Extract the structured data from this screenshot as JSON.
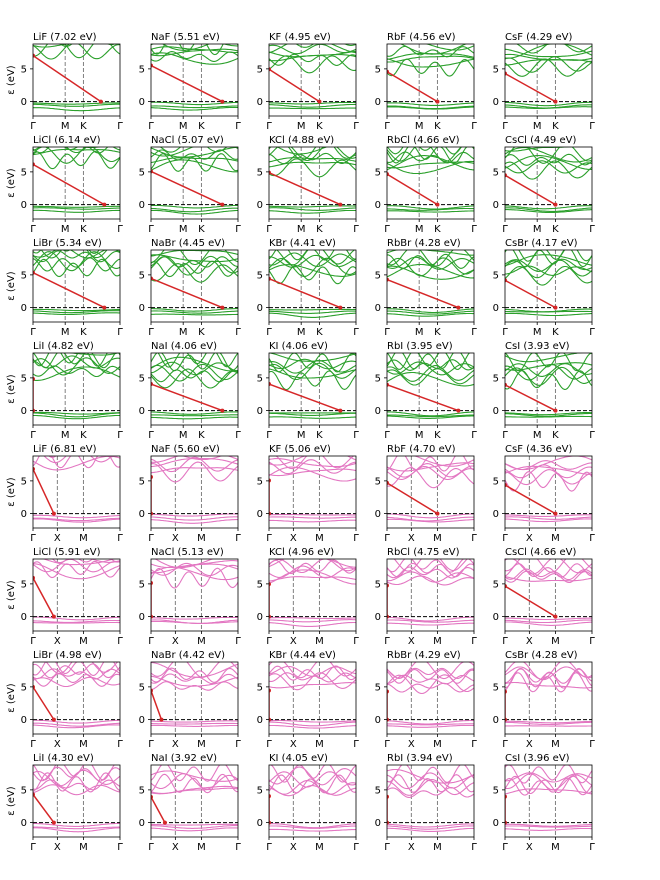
{
  "figure": {
    "ylabel": "ε (eV)",
    "yticks": [
      0,
      5
    ]
  },
  "colors": {
    "band_green": "#2ca02c",
    "band_pink": "#e377c2",
    "gap_line": "#d62728",
    "fermi_line": "#000000",
    "kpoint_line": "#808080",
    "axes": "#000000"
  },
  "chart_data": [
    {
      "type": "line",
      "title": "LiF (7.02 eV)",
      "family": "hex",
      "gap": 7.02,
      "cb_min_at": 0.78,
      "xticks": [
        "Γ",
        "M",
        "K",
        "Γ"
      ]
    },
    {
      "type": "line",
      "title": "NaF (5.51 eV)",
      "family": "hex",
      "gap": 5.51,
      "cb_min_at": 0.82,
      "xticks": [
        "Γ",
        "M",
        "K",
        "Γ"
      ]
    },
    {
      "type": "line",
      "title": "KF (4.95 eV)",
      "family": "hex",
      "gap": 4.95,
      "cb_min_at": 0.58,
      "xticks": [
        "Γ",
        "M",
        "K",
        "Γ"
      ]
    },
    {
      "type": "line",
      "title": "RbF (4.56 eV)",
      "family": "hex",
      "gap": 4.56,
      "cb_min_at": 0.58,
      "xticks": [
        "Γ",
        "M",
        "K",
        "Γ"
      ]
    },
    {
      "type": "line",
      "title": "CsF (4.29 eV)",
      "family": "hex",
      "gap": 4.29,
      "cb_min_at": 0.58,
      "xticks": [
        "Γ",
        "M",
        "K",
        "Γ"
      ]
    },
    {
      "type": "line",
      "title": "LiCl (6.14 eV)",
      "family": "hex",
      "gap": 6.14,
      "cb_min_at": 0.82,
      "xticks": [
        "Γ",
        "M",
        "K",
        "Γ"
      ]
    },
    {
      "type": "line",
      "title": "NaCl (5.07 eV)",
      "family": "hex",
      "gap": 5.07,
      "cb_min_at": 0.82,
      "xticks": [
        "Γ",
        "M",
        "K",
        "Γ"
      ]
    },
    {
      "type": "line",
      "title": "KCl (4.88 eV)",
      "family": "hex",
      "gap": 4.88,
      "cb_min_at": 0.82,
      "xticks": [
        "Γ",
        "M",
        "K",
        "Γ"
      ]
    },
    {
      "type": "line",
      "title": "RbCl (4.66 eV)",
      "family": "hex",
      "gap": 4.66,
      "cb_min_at": 0.58,
      "xticks": [
        "Γ",
        "M",
        "K",
        "Γ"
      ]
    },
    {
      "type": "line",
      "title": "CsCl (4.49 eV)",
      "family": "hex",
      "gap": 4.49,
      "cb_min_at": 0.58,
      "xticks": [
        "Γ",
        "M",
        "K",
        "Γ"
      ]
    },
    {
      "type": "line",
      "title": "LiBr (5.34 eV)",
      "family": "hex",
      "gap": 5.34,
      "cb_min_at": 0.82,
      "xticks": [
        "Γ",
        "M",
        "K",
        "Γ"
      ]
    },
    {
      "type": "line",
      "title": "NaBr (4.45 eV)",
      "family": "hex",
      "gap": 4.45,
      "cb_min_at": 0.82,
      "xticks": [
        "Γ",
        "M",
        "K",
        "Γ"
      ]
    },
    {
      "type": "line",
      "title": "KBr (4.41 eV)",
      "family": "hex",
      "gap": 4.41,
      "cb_min_at": 0.82,
      "xticks": [
        "Γ",
        "M",
        "K",
        "Γ"
      ]
    },
    {
      "type": "line",
      "title": "RbBr (4.28 eV)",
      "family": "hex",
      "gap": 4.28,
      "cb_min_at": 0.82,
      "xticks": [
        "Γ",
        "M",
        "K",
        "Γ"
      ]
    },
    {
      "type": "line",
      "title": "CsBr (4.17 eV)",
      "family": "hex",
      "gap": 4.17,
      "cb_min_at": 0.58,
      "xticks": [
        "Γ",
        "M",
        "K",
        "Γ"
      ]
    },
    {
      "type": "line",
      "title": "LiI (4.82 eV)",
      "family": "hex",
      "gap": 4.82,
      "cb_min_at": 0.0,
      "xticks": [
        "Γ",
        "M",
        "K",
        "Γ"
      ]
    },
    {
      "type": "line",
      "title": "NaI (4.06 eV)",
      "family": "hex",
      "gap": 4.06,
      "cb_min_at": 0.82,
      "xticks": [
        "Γ",
        "M",
        "K",
        "Γ"
      ]
    },
    {
      "type": "line",
      "title": "KI (4.06 eV)",
      "family": "hex",
      "gap": 4.06,
      "cb_min_at": 0.82,
      "xticks": [
        "Γ",
        "M",
        "K",
        "Γ"
      ]
    },
    {
      "type": "line",
      "title": "RbI (3.95 eV)",
      "family": "hex",
      "gap": 3.95,
      "cb_min_at": 0.82,
      "xticks": [
        "Γ",
        "M",
        "K",
        "Γ"
      ]
    },
    {
      "type": "line",
      "title": "CsI (3.93 eV)",
      "family": "hex",
      "gap": 3.93,
      "cb_min_at": 0.58,
      "xticks": [
        "Γ",
        "M",
        "K",
        "Γ"
      ]
    },
    {
      "type": "line",
      "title": "LiF (6.81 eV)",
      "family": "sq",
      "gap": 6.81,
      "cb_min_at": 0.24,
      "xticks": [
        "Γ",
        "X",
        "M",
        "Γ"
      ]
    },
    {
      "type": "line",
      "title": "NaF (5.60 eV)",
      "family": "sq",
      "gap": 5.6,
      "cb_min_at": 0.0,
      "xticks": [
        "Γ",
        "X",
        "M",
        "Γ"
      ]
    },
    {
      "type": "line",
      "title": "KF (5.06 eV)",
      "family": "sq",
      "gap": 5.06,
      "cb_min_at": 0.0,
      "xticks": [
        "Γ",
        "X",
        "M",
        "Γ"
      ]
    },
    {
      "type": "line",
      "title": "RbF (4.70 eV)",
      "family": "sq",
      "gap": 4.7,
      "cb_min_at": 0.58,
      "xticks": [
        "Γ",
        "X",
        "M",
        "Γ"
      ]
    },
    {
      "type": "line",
      "title": "CsF (4.36 eV)",
      "family": "sq",
      "gap": 4.36,
      "cb_min_at": 0.58,
      "xticks": [
        "Γ",
        "X",
        "M",
        "Γ"
      ]
    },
    {
      "type": "line",
      "title": "LiCl (5.91 eV)",
      "family": "sq",
      "gap": 5.91,
      "cb_min_at": 0.24,
      "xticks": [
        "Γ",
        "X",
        "M",
        "Γ"
      ]
    },
    {
      "type": "line",
      "title": "NaCl (5.13 eV)",
      "family": "sq",
      "gap": 5.13,
      "cb_min_at": 0.0,
      "xticks": [
        "Γ",
        "X",
        "M",
        "Γ"
      ]
    },
    {
      "type": "line",
      "title": "KCl (4.96 eV)",
      "family": "sq",
      "gap": 4.96,
      "cb_min_at": 0.0,
      "xticks": [
        "Γ",
        "X",
        "M",
        "Γ"
      ]
    },
    {
      "type": "line",
      "title": "RbCl (4.75 eV)",
      "family": "sq",
      "gap": 4.75,
      "cb_min_at": 0.0,
      "xticks": [
        "Γ",
        "X",
        "M",
        "Γ"
      ]
    },
    {
      "type": "line",
      "title": "CsCl (4.66 eV)",
      "family": "sq",
      "gap": 4.66,
      "cb_min_at": 0.58,
      "xticks": [
        "Γ",
        "X",
        "M",
        "Γ"
      ]
    },
    {
      "type": "line",
      "title": "LiBr (4.98 eV)",
      "family": "sq",
      "gap": 4.98,
      "cb_min_at": 0.24,
      "xticks": [
        "Γ",
        "X",
        "M",
        "Γ"
      ]
    },
    {
      "type": "line",
      "title": "NaBr (4.42 eV)",
      "family": "sq",
      "gap": 4.42,
      "cb_min_at": 0.12,
      "xticks": [
        "Γ",
        "X",
        "M",
        "Γ"
      ]
    },
    {
      "type": "line",
      "title": "KBr (4.44 eV)",
      "family": "sq",
      "gap": 4.44,
      "cb_min_at": 0.0,
      "xticks": [
        "Γ",
        "X",
        "M",
        "Γ"
      ]
    },
    {
      "type": "line",
      "title": "RbBr (4.29 eV)",
      "family": "sq",
      "gap": 4.29,
      "cb_min_at": 0.0,
      "xticks": [
        "Γ",
        "X",
        "M",
        "Γ"
      ]
    },
    {
      "type": "line",
      "title": "CsBr (4.28 eV)",
      "family": "sq",
      "gap": 4.28,
      "cb_min_at": 0.0,
      "xticks": [
        "Γ",
        "X",
        "M",
        "Γ"
      ]
    },
    {
      "type": "line",
      "title": "LiI (4.30 eV)",
      "family": "sq",
      "gap": 4.3,
      "cb_min_at": 0.24,
      "xticks": [
        "Γ",
        "X",
        "M",
        "Γ"
      ]
    },
    {
      "type": "line",
      "title": "NaI (3.92 eV)",
      "family": "sq",
      "gap": 3.92,
      "cb_min_at": 0.16,
      "xticks": [
        "Γ",
        "X",
        "M",
        "Γ"
      ]
    },
    {
      "type": "line",
      "title": "KI (4.05 eV)",
      "family": "sq",
      "gap": 4.05,
      "cb_min_at": 0.0,
      "xticks": [
        "Γ",
        "X",
        "M",
        "Γ"
      ]
    },
    {
      "type": "line",
      "title": "RbI (3.94 eV)",
      "family": "sq",
      "gap": 3.94,
      "cb_min_at": 0.0,
      "xticks": [
        "Γ",
        "X",
        "M",
        "Γ"
      ]
    },
    {
      "type": "line",
      "title": "CsI (3.96 eV)",
      "family": "sq",
      "gap": 3.96,
      "cb_min_at": 0.0,
      "xticks": [
        "Γ",
        "X",
        "M",
        "Γ"
      ]
    }
  ]
}
